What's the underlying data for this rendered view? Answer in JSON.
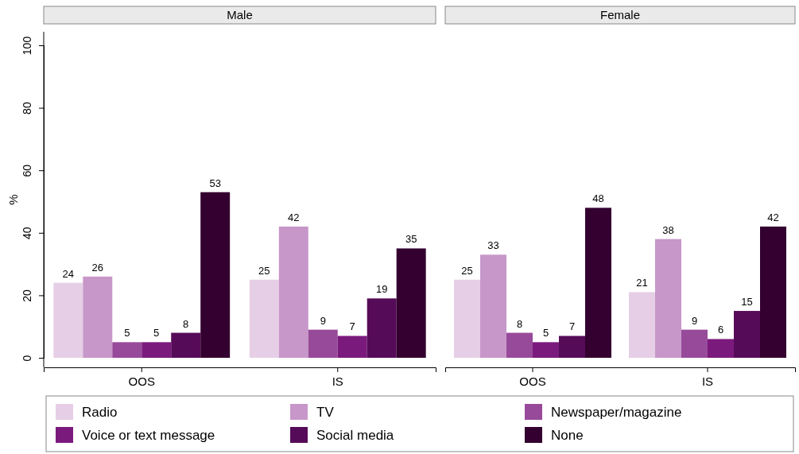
{
  "chart_data": [
    {
      "type": "bar",
      "title": "Male",
      "ylabel": "%",
      "categories": [
        "OOS",
        "IS"
      ],
      "ylim": [
        0,
        100
      ],
      "yticks": [
        0,
        20,
        40,
        60,
        80,
        100
      ],
      "data_labels": true,
      "legend": "bottom",
      "series": [
        {
          "name": "Radio",
          "color": "#e6cfe6",
          "values": [
            24,
            25
          ]
        },
        {
          "name": "TV",
          "color": "#c797c9",
          "values": [
            26,
            42
          ]
        },
        {
          "name": "Newspaper/magazine",
          "color": "#984a9a",
          "values": [
            5,
            9
          ]
        },
        {
          "name": "Voice or text message",
          "color": "#7b1a7d",
          "values": [
            5,
            7
          ]
        },
        {
          "name": "Social media",
          "color": "#560b58",
          "values": [
            8,
            19
          ]
        },
        {
          "name": "None",
          "color": "#33002f",
          "values": [
            53,
            35
          ]
        }
      ]
    },
    {
      "type": "bar",
      "title": "Female",
      "categories": [
        "OOS",
        "IS"
      ],
      "ylim": [
        0,
        100
      ],
      "tick_labels": "x",
      "data_labels": true,
      "series": [
        {
          "color": "#e6cfe6",
          "values": [
            25,
            21
          ]
        },
        {
          "color": "#c797c9",
          "values": [
            33,
            38
          ]
        },
        {
          "color": "#984a9a",
          "values": [
            8,
            9
          ]
        },
        {
          "color": "#7b1a7d",
          "values": [
            5,
            6
          ]
        },
        {
          "color": "#560b58",
          "values": [
            7,
            15
          ]
        },
        {
          "color": "#33002f",
          "values": [
            48,
            42
          ]
        }
      ]
    }
  ]
}
